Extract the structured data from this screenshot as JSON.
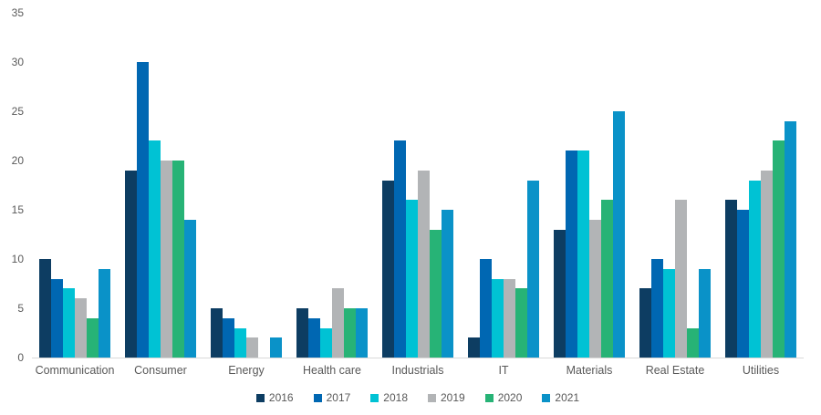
{
  "chart_data": {
    "type": "bar",
    "title": "",
    "xlabel": "",
    "ylabel": "",
    "categories": [
      "Communication",
      "Consumer",
      "Energy",
      "Health care",
      "Industrials",
      "IT",
      "Materials",
      "Real Estate",
      "Utilities"
    ],
    "series": [
      {
        "name": "2016",
        "color": "#0d3d62",
        "values": [
          10,
          19,
          5,
          5,
          18,
          2,
          13,
          7,
          16
        ]
      },
      {
        "name": "2017",
        "color": "#0067b2",
        "values": [
          8,
          30,
          4,
          4,
          22,
          10,
          21,
          10,
          15
        ]
      },
      {
        "name": "2018",
        "color": "#00c2d4",
        "values": [
          7,
          22,
          3,
          3,
          16,
          8,
          21,
          9,
          18
        ]
      },
      {
        "name": "2019",
        "color": "#b2b4b6",
        "values": [
          6,
          20,
          2,
          7,
          19,
          8,
          14,
          16,
          19
        ]
      },
      {
        "name": "2020",
        "color": "#27b376",
        "values": [
          4,
          20,
          0,
          5,
          13,
          7,
          16,
          3,
          22
        ]
      },
      {
        "name": "2021",
        "color": "#0a92c8",
        "values": [
          9,
          14,
          2,
          5,
          15,
          18,
          25,
          9,
          24
        ]
      }
    ],
    "ylim": [
      0,
      35
    ],
    "yticks": [
      0,
      5,
      10,
      15,
      20,
      25,
      30,
      35
    ],
    "grid": false,
    "legend_position": "bottom"
  },
  "style": {
    "tick_text_color": "#595959",
    "axis_line_color": "#d9d9d9",
    "background_color": "#ffffff"
  }
}
